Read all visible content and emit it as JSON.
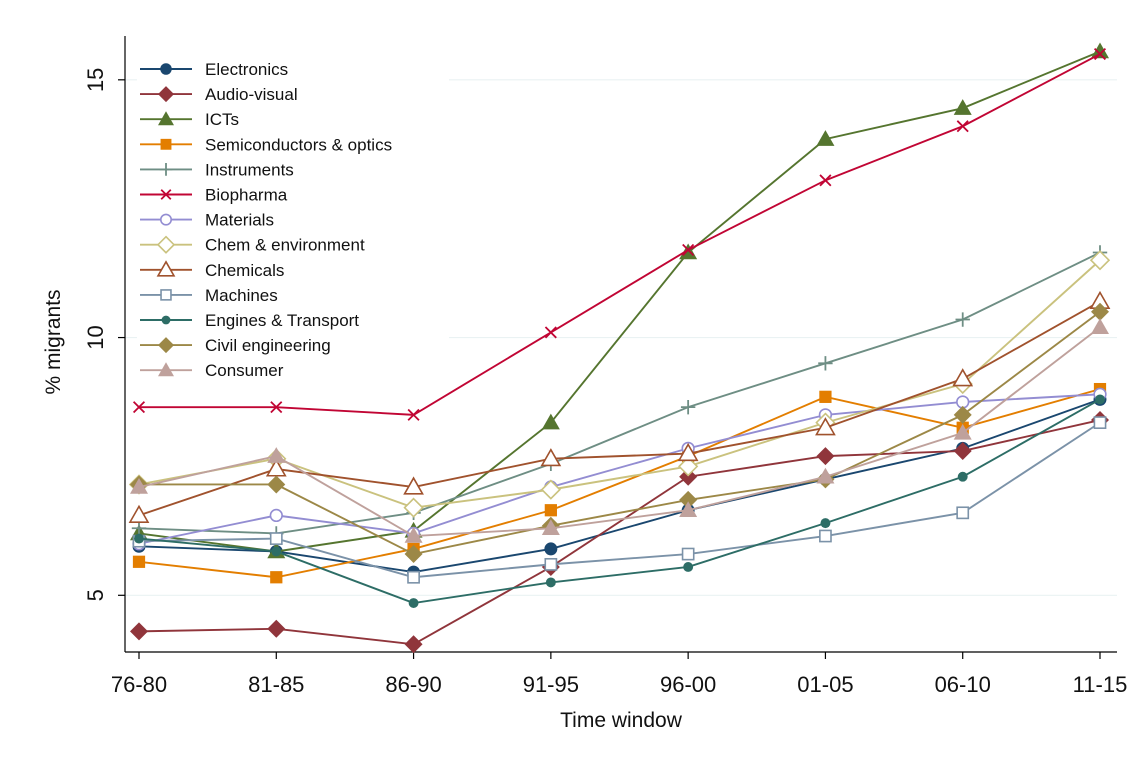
{
  "chart_data": {
    "type": "line",
    "title": "",
    "xlabel": "Time window",
    "ylabel": "% migrants",
    "categories": [
      "76-80",
      "81-85",
      "86-90",
      "91-95",
      "96-00",
      "01-05",
      "06-10",
      "11-15"
    ],
    "ylim": [
      3.9,
      15.85
    ],
    "yticks": [
      5,
      10,
      15
    ],
    "grid": true,
    "legend_position": "top-left",
    "series": [
      {
        "name": "Electronics",
        "color": "#1a476f",
        "marker": "circle-filled",
        "values": [
          5.95,
          5.85,
          5.45,
          5.9,
          6.65,
          7.25,
          7.85,
          8.8
        ]
      },
      {
        "name": "Audio-visual",
        "color": "#90353b",
        "marker": "diamond-filled",
        "values": [
          4.3,
          4.35,
          4.05,
          5.55,
          7.3,
          7.7,
          7.8,
          8.4
        ]
      },
      {
        "name": "ICTs",
        "color": "#55752f",
        "marker": "triangle-filled",
        "values": [
          6.2,
          5.85,
          6.25,
          8.35,
          11.65,
          13.85,
          14.45,
          15.55
        ]
      },
      {
        "name": "Semiconductors & optics",
        "color": "#e37e00",
        "marker": "square-filled",
        "values": [
          5.65,
          5.35,
          5.9,
          6.65,
          7.7,
          8.85,
          8.25,
          9.0
        ]
      },
      {
        "name": "Instruments",
        "color": "#6e8e84",
        "marker": "plus",
        "values": [
          6.3,
          6.2,
          6.6,
          7.55,
          8.65,
          9.5,
          10.35,
          11.65
        ]
      },
      {
        "name": "Biopharma",
        "color": "#c10534",
        "marker": "x",
        "values": [
          8.65,
          8.65,
          8.5,
          10.1,
          11.7,
          13.05,
          14.1,
          15.5
        ]
      },
      {
        "name": "Materials",
        "color": "#938dd2",
        "marker": "circle-hollow",
        "values": [
          6.0,
          6.55,
          6.2,
          7.1,
          7.85,
          8.5,
          8.75,
          8.9
        ]
      },
      {
        "name": "Chem & environment",
        "color": "#cac27e",
        "marker": "diamond-hollow",
        "values": [
          7.15,
          7.65,
          6.7,
          7.05,
          7.5,
          8.35,
          9.1,
          11.5
        ]
      },
      {
        "name": "Chemicals",
        "color": "#a0522d",
        "marker": "triangle-hollow",
        "values": [
          6.55,
          7.45,
          7.1,
          7.65,
          7.75,
          8.25,
          9.2,
          10.7
        ]
      },
      {
        "name": "Machines",
        "color": "#7b92a8",
        "marker": "square-hollow",
        "values": [
          6.05,
          6.1,
          5.35,
          5.6,
          5.8,
          6.15,
          6.6,
          8.35
        ]
      },
      {
        "name": "Engines & Transport",
        "color": "#2d6d66",
        "marker": "circle-small",
        "values": [
          6.1,
          5.85,
          4.85,
          5.25,
          5.55,
          6.4,
          7.3,
          8.8
        ]
      },
      {
        "name": "Civil engineering",
        "color": "#9c8847",
        "marker": "diamond-filled",
        "values": [
          7.15,
          7.15,
          5.8,
          6.35,
          6.85,
          7.25,
          8.5,
          10.5
        ]
      },
      {
        "name": "Consumer",
        "color": "#bfa19c",
        "marker": "triangle-filled",
        "values": [
          7.1,
          7.7,
          6.15,
          6.3,
          6.65,
          7.3,
          8.15,
          10.2
        ]
      }
    ]
  }
}
